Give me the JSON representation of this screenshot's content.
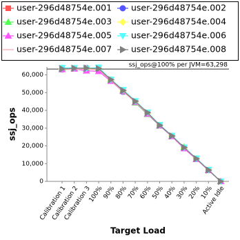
{
  "chart_data": {
    "type": "line",
    "x_label": "Target Load",
    "y_label": "ssj_ops",
    "annotation": "ssj_ops@100% per JVM=63,298",
    "reference_line": 63298,
    "categories": [
      "Calibration 1",
      "Calibration 2",
      "Calibration 3",
      "100%",
      "90%",
      "80%",
      "70%",
      "60%",
      "50%",
      "40%",
      "30%",
      "20%",
      "10%",
      "Active Idle"
    ],
    "ylim": [
      0,
      64500
    ],
    "yticks": [
      0,
      {
        "value": 10000,
        "label": "10,000"
      },
      {
        "value": 20000,
        "label": "20,000"
      },
      {
        "value": 30000,
        "label": "30,000"
      },
      {
        "value": 40000,
        "label": "40,000"
      },
      {
        "value": 50000,
        "label": "50,000"
      },
      {
        "value": 60000,
        "label": "60,000"
      }
    ],
    "grid": false,
    "series": [
      {
        "name": "user-296d48754e.001",
        "color": "#ff5555",
        "marker": "square",
        "values": [
          63500,
          63800,
          63500,
          63300,
          57000,
          51000,
          44800,
          38400,
          31800,
          25500,
          19000,
          12700,
          6400,
          0
        ]
      },
      {
        "name": "user-296d48754e.002",
        "color": "#5555ff",
        "marker": "circle",
        "values": [
          63000,
          63600,
          63900,
          63100,
          56800,
          50500,
          45000,
          38600,
          31500,
          25600,
          19100,
          12800,
          6300,
          0
        ]
      },
      {
        "name": "user-296d48754e.003",
        "color": "#55ff55",
        "marker": "triangle-up",
        "values": [
          63800,
          63700,
          63400,
          63800,
          57200,
          51300,
          44300,
          37800,
          31300,
          25400,
          19300,
          12600,
          6300,
          0
        ]
      },
      {
        "name": "user-296d48754e.004",
        "color": "#ffff55",
        "marker": "diamond",
        "values": [
          63200,
          63500,
          63700,
          63600,
          57100,
          50900,
          44900,
          38200,
          31600,
          25700,
          18900,
          12900,
          6500,
          0
        ]
      },
      {
        "name": "user-296d48754e.005",
        "color": "#ff55ff",
        "marker": "triangle-up",
        "values": [
          63100,
          63400,
          62300,
          62000,
          56500,
          50800,
          44600,
          38000,
          31400,
          25300,
          18500,
          12500,
          6200,
          0
        ]
      },
      {
        "name": "user-296d48754e.006",
        "color": "#55ffff",
        "marker": "triangle-down",
        "values": [
          64000,
          63900,
          63600,
          64200,
          57400,
          51600,
          45300,
          38900,
          31900,
          25800,
          19200,
          13000,
          6600,
          0
        ]
      },
      {
        "name": "user-296d48754e.007",
        "color": "#ffaaaa",
        "marker": "none",
        "values": [
          62900,
          63300,
          63200,
          63000,
          56900,
          50700,
          44700,
          38300,
          31700,
          25500,
          19000,
          12700,
          6400,
          0
        ]
      },
      {
        "name": "user-296d48754e.008",
        "color": "#808080",
        "marker": "triangle-right",
        "values": [
          63400,
          63700,
          63800,
          63500,
          57300,
          51200,
          45100,
          38700,
          31600,
          25600,
          19100,
          12800,
          6400,
          0
        ]
      }
    ]
  }
}
